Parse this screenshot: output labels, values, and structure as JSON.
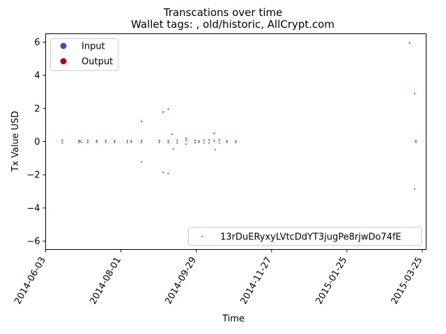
{
  "chart_data": {
    "type": "scatter",
    "title": "Transcations over time",
    "subtitle": "Wallet tags: , old/historic, AllCrypt.com",
    "xlabel": "Time",
    "ylabel": "Tx Value USD",
    "x_type": "date",
    "xlim": [
      "2014-06-03",
      "2015-03-28"
    ],
    "ylim": [
      -6.5,
      6.5
    ],
    "x_ticks": [
      "2014-06-03",
      "2014-08-01",
      "2014-09-29",
      "2014-11-27",
      "2015-01-25",
      "2015-03-25"
    ],
    "y_ticks": [
      -6,
      -4,
      -2,
      0,
      2,
      4,
      6
    ],
    "grid": false,
    "legends": [
      {
        "placement": "upper-left",
        "entries": [
          {
            "label": "Input",
            "color": "#3b4cc0"
          },
          {
            "label": "Output",
            "color": "#b40426"
          }
        ]
      },
      {
        "placement": "lower-right",
        "entries": [
          {
            "label": "13rDuERyxyLVtcDdYT3jugPe8rjwDo74fE",
            "color": "#1f8a8a"
          }
        ]
      }
    ],
    "series": [
      {
        "name": "Output",
        "color": "#b40426",
        "points": [
          {
            "x": "2014-06-16",
            "y": 0.08
          },
          {
            "x": "2014-06-29",
            "y": 0.05
          },
          {
            "x": "2014-06-30",
            "y": 0.04
          },
          {
            "x": "2014-07-06",
            "y": 0.07
          },
          {
            "x": "2014-07-13",
            "y": 0.06
          },
          {
            "x": "2014-07-20",
            "y": 0.06
          },
          {
            "x": "2014-07-27",
            "y": 0.04
          },
          {
            "x": "2014-08-06",
            "y": 0.06
          },
          {
            "x": "2014-08-09",
            "y": 0.04
          },
          {
            "x": "2014-08-17",
            "y": 1.22
          },
          {
            "x": "2014-08-17",
            "y": 0.05
          },
          {
            "x": "2014-08-31",
            "y": 0.06
          },
          {
            "x": "2014-09-03",
            "y": 1.78
          },
          {
            "x": "2014-09-07",
            "y": 1.95
          },
          {
            "x": "2014-09-10",
            "y": 0.45
          },
          {
            "x": "2014-09-07",
            "y": 0.06
          },
          {
            "x": "2014-09-14",
            "y": 0.08
          },
          {
            "x": "2014-09-21",
            "y": 0.2
          },
          {
            "x": "2014-09-21",
            "y": 0.08
          },
          {
            "x": "2014-09-28",
            "y": 0.08
          },
          {
            "x": "2014-10-01",
            "y": 0.04
          },
          {
            "x": "2014-10-05",
            "y": 0.08
          },
          {
            "x": "2014-10-09",
            "y": 0.1
          },
          {
            "x": "2014-10-13",
            "y": 0.5
          },
          {
            "x": "2014-10-13",
            "y": 0.05
          },
          {
            "x": "2014-10-17",
            "y": 0.1
          },
          {
            "x": "2014-10-23",
            "y": 0.04
          },
          {
            "x": "2014-10-30",
            "y": 0.04
          },
          {
            "x": "2015-03-15",
            "y": 5.95
          },
          {
            "x": "2015-03-19",
            "y": 2.9
          },
          {
            "x": "2015-03-20",
            "y": 0.06
          }
        ]
      },
      {
        "name": "Input",
        "color": "#3b4cc0",
        "points": [
          {
            "x": "2014-06-16",
            "y": -0.08
          },
          {
            "x": "2014-06-29",
            "y": -0.05
          },
          {
            "x": "2014-07-01",
            "y": -0.04
          },
          {
            "x": "2014-07-06",
            "y": -0.05
          },
          {
            "x": "2014-07-13",
            "y": -0.04
          },
          {
            "x": "2014-07-20",
            "y": -0.06
          },
          {
            "x": "2014-07-27",
            "y": -0.05
          },
          {
            "x": "2014-08-06",
            "y": -0.05
          },
          {
            "x": "2014-08-09",
            "y": -0.04
          },
          {
            "x": "2014-08-17",
            "y": -1.22
          },
          {
            "x": "2014-08-17",
            "y": -0.05
          },
          {
            "x": "2014-08-31",
            "y": -0.06
          },
          {
            "x": "2014-09-03",
            "y": -1.85
          },
          {
            "x": "2014-09-07",
            "y": -1.92
          },
          {
            "x": "2014-09-11",
            "y": -0.45
          },
          {
            "x": "2014-09-07",
            "y": -0.06
          },
          {
            "x": "2014-09-14",
            "y": -0.08
          },
          {
            "x": "2014-09-21",
            "y": -0.15
          },
          {
            "x": "2014-09-28",
            "y": -0.06
          },
          {
            "x": "2014-10-01",
            "y": -0.04
          },
          {
            "x": "2014-10-05",
            "y": -0.08
          },
          {
            "x": "2014-10-09",
            "y": -0.08
          },
          {
            "x": "2014-10-14",
            "y": -0.48
          },
          {
            "x": "2014-10-17",
            "y": -0.08
          },
          {
            "x": "2014-10-23",
            "y": -0.04
          },
          {
            "x": "2014-10-30",
            "y": -0.05
          },
          {
            "x": "2015-03-19",
            "y": -2.85
          },
          {
            "x": "2015-03-20",
            "y": -0.04
          }
        ]
      }
    ]
  }
}
